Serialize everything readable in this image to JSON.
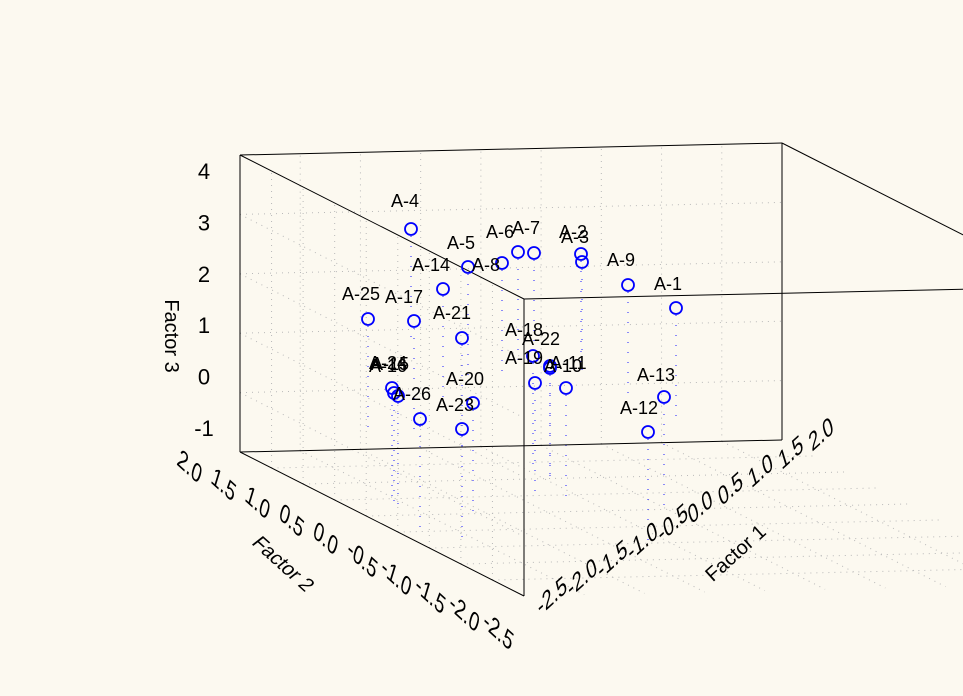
{
  "chart_data": {
    "type": "scatter3d",
    "title": "",
    "axes": {
      "x": {
        "label": "Factor 1",
        "ticks": [
          "-2.5",
          "-2.0",
          "-1.5",
          "-1.0",
          "-0.5",
          "0.0",
          "0.5",
          "1.0",
          "1.5",
          "2.0"
        ]
      },
      "y": {
        "label": "Factor 2",
        "ticks": [
          "2.0",
          "1.5",
          "1.0",
          "0.5",
          "0.0",
          "-0.5",
          "-1.0",
          "-1.5",
          "-2.0",
          "-2.5"
        ]
      },
      "z": {
        "label": "Factor 3",
        "ticks": [
          "-1",
          "0",
          "1",
          "2",
          "3",
          "4"
        ]
      }
    },
    "grid": true,
    "marker": {
      "shape": "circle-open",
      "color": "#0000ff"
    },
    "points": [
      {
        "label": "A-1"
      },
      {
        "label": "A-2"
      },
      {
        "label": "A-3"
      },
      {
        "label": "A-4"
      },
      {
        "label": "A-5"
      },
      {
        "label": "A-6"
      },
      {
        "label": "A-7"
      },
      {
        "label": "A-8"
      },
      {
        "label": "A-9"
      },
      {
        "label": "A-10"
      },
      {
        "label": "A-11"
      },
      {
        "label": "A-12"
      },
      {
        "label": "A-13"
      },
      {
        "label": "A-14"
      },
      {
        "label": "A-15"
      },
      {
        "label": "A-16"
      },
      {
        "label": "A-17"
      },
      {
        "label": "A-18"
      },
      {
        "label": "A-19"
      },
      {
        "label": "A-20"
      },
      {
        "label": "A-21"
      },
      {
        "label": "A-22"
      },
      {
        "label": "A-23"
      },
      {
        "label": "A-24"
      },
      {
        "label": "A-25"
      },
      {
        "label": "A-26"
      }
    ]
  }
}
